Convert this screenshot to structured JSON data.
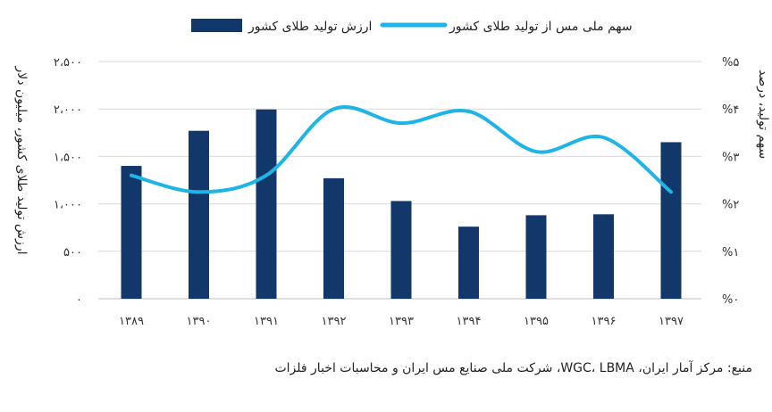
{
  "chart_data": {
    "type": "bar",
    "categories": [
      "۱۳۸۹",
      "۱۳۹۰",
      "۱۳۹۱",
      "۱۳۹۲",
      "۱۳۹۳",
      "۱۳۹۴",
      "۱۳۹۵",
      "۱۳۹۶",
      "۱۳۹۷"
    ],
    "series": [
      {
        "name": "ارزش تولید طلای کشور",
        "kind": "bar",
        "axis": "left",
        "color": "#12386b",
        "values": [
          1400,
          1770,
          1995,
          1270,
          1030,
          760,
          880,
          890,
          1650
        ]
      },
      {
        "name": "سهم ملی مس از تولید طلای کشور",
        "kind": "line",
        "axis": "right",
        "color": "#1fb4e6",
        "values": [
          2.6,
          2.25,
          2.6,
          4.0,
          3.7,
          3.95,
          3.1,
          3.4,
          2.25
        ]
      }
    ],
    "left_axis": {
      "title": "ارزش تولید طلای کشور، میلیون دلار",
      "range": [
        0,
        2500
      ],
      "ticks": [
        0,
        500,
        1000,
        1500,
        2000,
        2500
      ],
      "tick_labels": [
        "۰",
        "۵۰۰",
        "۱،۰۰۰",
        "۱،۵۰۰",
        "۲،۰۰۰",
        "۲،۵۰۰"
      ]
    },
    "right_axis": {
      "title": "سهم تولید، درصد",
      "range": [
        0,
        5
      ],
      "ticks": [
        0,
        1,
        2,
        3,
        4,
        5
      ],
      "tick_labels": [
        "%۰",
        "%۱",
        "%۲",
        "%۳",
        "%۴",
        "%۵"
      ]
    },
    "grid": true,
    "legend_position": "top"
  },
  "source_text": "منبع: مرکز آمار ایران، WGC، LBMA، شرکت ملی صنایع مس ایران و محاسبات اخبار فلزات"
}
